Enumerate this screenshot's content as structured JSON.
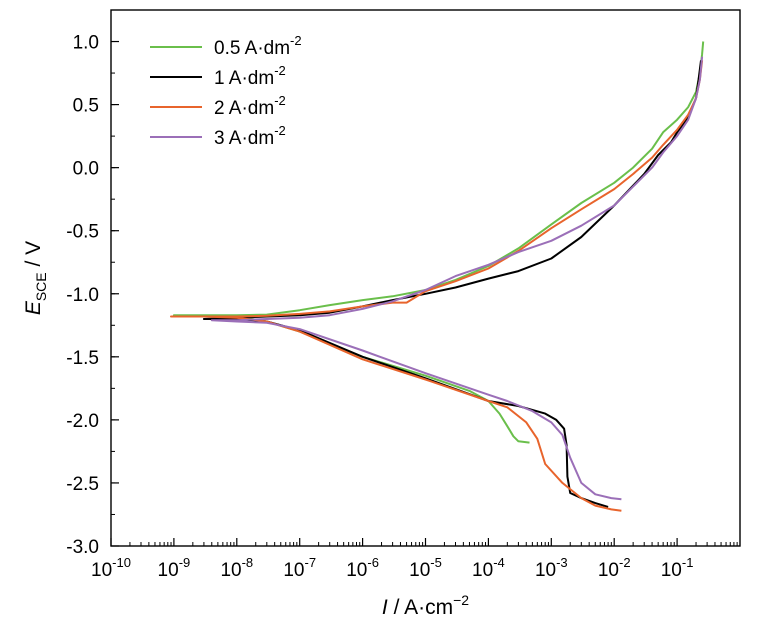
{
  "chart_data": {
    "type": "line",
    "title": "",
    "xlabel": {
      "var": "I",
      "rest": " / A·cm",
      "exp": "−2"
    },
    "ylabel": {
      "var": "E",
      "sub": "SCE",
      "rest": " / V"
    },
    "xscale": "log",
    "xlim": [
      1e-10,
      1
    ],
    "ylim": [
      -3.0,
      1.25
    ],
    "grid": false,
    "legend_position": "top-left",
    "x_ticks": [
      {
        "base": "10",
        "exp": "-10",
        "value": 1e-10
      },
      {
        "base": "10",
        "exp": "-9",
        "value": 1e-09
      },
      {
        "base": "10",
        "exp": "-8",
        "value": 1e-08
      },
      {
        "base": "10",
        "exp": "-7",
        "value": 1e-07
      },
      {
        "base": "10",
        "exp": "-6",
        "value": 1e-06
      },
      {
        "base": "10",
        "exp": "-5",
        "value": 1e-05
      },
      {
        "base": "10",
        "exp": "-4",
        "value": 0.0001
      },
      {
        "base": "10",
        "exp": "-3",
        "value": 0.001
      },
      {
        "base": "10",
        "exp": "-2",
        "value": 0.01
      },
      {
        "base": "10",
        "exp": "-1",
        "value": 0.1
      }
    ],
    "y_ticks": [
      {
        "label": "1.0",
        "value": 1.0
      },
      {
        "label": "0.5",
        "value": 0.5
      },
      {
        "label": "0.0",
        "value": 0.0
      },
      {
        "label": "-0.5",
        "value": -0.5
      },
      {
        "label": "-1.0",
        "value": -1.0
      },
      {
        "label": "-1.5",
        "value": -1.5
      },
      {
        "label": "-2.0",
        "value": -2.0
      },
      {
        "label": "-2.5",
        "value": -2.5
      },
      {
        "label": "-3.0",
        "value": -3.0
      }
    ],
    "series": [
      {
        "name": "0.5 A·dm",
        "name_exp": "-2",
        "color": "#6abf4b",
        "points": [
          [
            0.00045,
            -2.18
          ],
          [
            0.0003,
            -2.17
          ],
          [
            0.00025,
            -2.13
          ],
          [
            0.0002,
            -2.05
          ],
          [
            0.00015,
            -1.95
          ],
          [
            0.0001,
            -1.85
          ],
          [
            5e-05,
            -1.77
          ],
          [
            1e-05,
            -1.65
          ],
          [
            1e-06,
            -1.5
          ],
          [
            1e-07,
            -1.3
          ],
          [
            3e-08,
            -1.22
          ],
          [
            1e-08,
            -1.18
          ],
          [
            1e-09,
            -1.17
          ],
          [
            3e-09,
            -1.17
          ],
          [
            1e-08,
            -1.17
          ],
          [
            3e-08,
            -1.165
          ],
          [
            1e-07,
            -1.13
          ],
          [
            3e-07,
            -1.09
          ],
          [
            1e-06,
            -1.05
          ],
          [
            3e-06,
            -1.02
          ],
          [
            1e-05,
            -0.97
          ],
          [
            3e-05,
            -0.89
          ],
          [
            0.0001,
            -0.78
          ],
          [
            0.0003,
            -0.64
          ],
          [
            0.001,
            -0.45
          ],
          [
            0.003,
            -0.28
          ],
          [
            0.01,
            -0.12
          ],
          [
            0.02,
            0.0
          ],
          [
            0.04,
            0.15
          ],
          [
            0.06,
            0.28
          ],
          [
            0.1,
            0.38
          ],
          [
            0.15,
            0.48
          ],
          [
            0.2,
            0.6
          ],
          [
            0.23,
            0.75
          ],
          [
            0.25,
            0.9
          ],
          [
            0.26,
            1.0
          ]
        ]
      },
      {
        "name": "1 A·dm",
        "name_exp": "-2",
        "color": "#000000",
        "points": [
          [
            0.008,
            -2.69
          ],
          [
            0.005,
            -2.66
          ],
          [
            0.003,
            -2.62
          ],
          [
            0.002,
            -2.58
          ],
          [
            0.0018,
            -2.45
          ],
          [
            0.00175,
            -2.2
          ],
          [
            0.0016,
            -2.07
          ],
          [
            0.0012,
            -2.0
          ],
          [
            0.0008,
            -1.95
          ],
          [
            0.0003,
            -1.89
          ],
          [
            0.0001,
            -1.85
          ],
          [
            1e-05,
            -1.67
          ],
          [
            1e-06,
            -1.5
          ],
          [
            1e-07,
            -1.29
          ],
          [
            3e-08,
            -1.22
          ],
          [
            1e-08,
            -1.2
          ],
          [
            3e-09,
            -1.2
          ],
          [
            1e-08,
            -1.19
          ],
          [
            3e-08,
            -1.18
          ],
          [
            1e-07,
            -1.17
          ],
          [
            3e-07,
            -1.15
          ],
          [
            1e-06,
            -1.1
          ],
          [
            3e-06,
            -1.05
          ],
          [
            1e-05,
            -1.0
          ],
          [
            3e-05,
            -0.95
          ],
          [
            0.0001,
            -0.88
          ],
          [
            0.0003,
            -0.82
          ],
          [
            0.001,
            -0.72
          ],
          [
            0.003,
            -0.55
          ],
          [
            0.01,
            -0.3
          ],
          [
            0.03,
            -0.05
          ],
          [
            0.05,
            0.1
          ],
          [
            0.08,
            0.2
          ],
          [
            0.1,
            0.28
          ],
          [
            0.15,
            0.4
          ],
          [
            0.2,
            0.55
          ],
          [
            0.22,
            0.7
          ],
          [
            0.24,
            0.85
          ]
        ]
      },
      {
        "name": "2 A·dm",
        "name_exp": "-2",
        "color": "#e8642c",
        "points": [
          [
            0.013,
            -2.72
          ],
          [
            0.009,
            -2.71
          ],
          [
            0.005,
            -2.68
          ],
          [
            0.003,
            -2.62
          ],
          [
            0.0015,
            -2.5
          ],
          [
            0.0008,
            -2.35
          ],
          [
            0.0006,
            -2.15
          ],
          [
            0.0004,
            -2.02
          ],
          [
            0.0002,
            -1.9
          ],
          [
            0.0001,
            -1.85
          ],
          [
            1e-05,
            -1.68
          ],
          [
            1e-06,
            -1.52
          ],
          [
            1e-07,
            -1.3
          ],
          [
            3e-08,
            -1.22
          ],
          [
            1e-08,
            -1.19
          ],
          [
            3e-09,
            -1.18
          ],
          [
            9e-10,
            -1.18
          ],
          [
            3e-09,
            -1.18
          ],
          [
            1e-08,
            -1.18
          ],
          [
            3e-08,
            -1.175
          ],
          [
            1e-07,
            -1.16
          ],
          [
            3e-07,
            -1.14
          ],
          [
            1e-06,
            -1.1
          ],
          [
            3e-06,
            -1.07
          ],
          [
            5e-06,
            -1.07
          ],
          [
            1e-05,
            -0.98
          ],
          [
            3e-05,
            -0.9
          ],
          [
            0.0001,
            -0.8
          ],
          [
            0.0003,
            -0.66
          ],
          [
            0.001,
            -0.48
          ],
          [
            0.003,
            -0.33
          ],
          [
            0.01,
            -0.17
          ],
          [
            0.02,
            -0.05
          ],
          [
            0.04,
            0.08
          ],
          [
            0.06,
            0.18
          ],
          [
            0.1,
            0.3
          ],
          [
            0.15,
            0.42
          ],
          [
            0.2,
            0.55
          ],
          [
            0.23,
            0.7
          ],
          [
            0.25,
            0.85
          ]
        ]
      },
      {
        "name": "3 A·dm",
        "name_exp": "-2",
        "color": "#9b6fb8",
        "points": [
          [
            0.013,
            -2.63
          ],
          [
            0.009,
            -2.62
          ],
          [
            0.005,
            -2.59
          ],
          [
            0.003,
            -2.5
          ],
          [
            0.002,
            -2.3
          ],
          [
            0.0015,
            -2.12
          ],
          [
            0.001,
            -2.02
          ],
          [
            0.0005,
            -1.93
          ],
          [
            0.0002,
            -1.85
          ],
          [
            0.0001,
            -1.8
          ],
          [
            1e-05,
            -1.63
          ],
          [
            1e-06,
            -1.45
          ],
          [
            1e-07,
            -1.28
          ],
          [
            3e-08,
            -1.23
          ],
          [
            1e-08,
            -1.22
          ],
          [
            4e-09,
            -1.21
          ],
          [
            1e-08,
            -1.21
          ],
          [
            3e-08,
            -1.2
          ],
          [
            1e-07,
            -1.19
          ],
          [
            3e-07,
            -1.17
          ],
          [
            1e-06,
            -1.12
          ],
          [
            3e-06,
            -1.06
          ],
          [
            1e-05,
            -0.97
          ],
          [
            3e-05,
            -0.86
          ],
          [
            0.0001,
            -0.77
          ],
          [
            0.0003,
            -0.67
          ],
          [
            0.001,
            -0.58
          ],
          [
            0.003,
            -0.46
          ],
          [
            0.01,
            -0.3
          ],
          [
            0.02,
            -0.15
          ],
          [
            0.04,
            0.0
          ],
          [
            0.06,
            0.12
          ],
          [
            0.1,
            0.25
          ],
          [
            0.15,
            0.38
          ],
          [
            0.2,
            0.55
          ],
          [
            0.23,
            0.7
          ],
          [
            0.25,
            0.88
          ]
        ]
      }
    ]
  }
}
